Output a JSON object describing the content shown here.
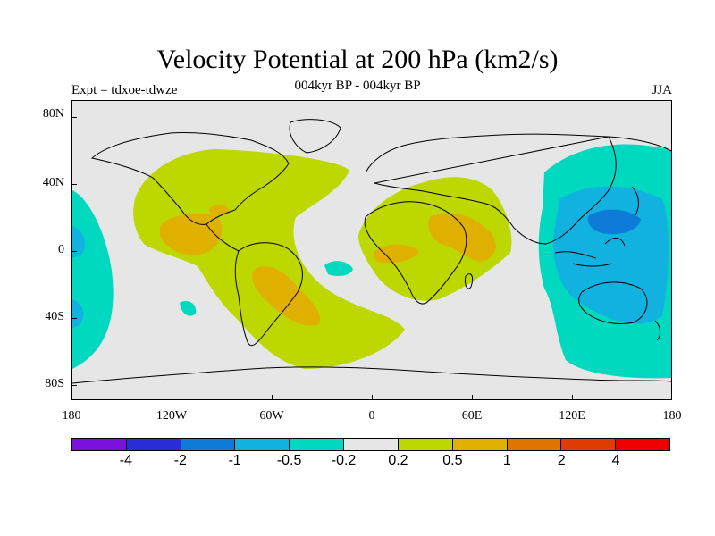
{
  "header": {
    "title": "Velocity Potential at 200 hPa (km2/s)",
    "subtitle": "004kyr BP - 004kyr BP",
    "left": "Expt = tdxoe-tdwze",
    "right": "JJA"
  },
  "axes": {
    "y_ticks": [
      "80N",
      "40N",
      "0",
      "40S",
      "80S"
    ],
    "x_ticks": [
      "180",
      "120W",
      "60W",
      "0",
      "60E",
      "120E",
      "180"
    ]
  },
  "colorbar": {
    "colors": [
      "#7a10dd",
      "#2a2ed8",
      "#0f7bd9",
      "#11b2e0",
      "#00d8c0",
      "#e6e6e6",
      "#bcd800",
      "#e0b000",
      "#e07400",
      "#e03c00",
      "#ee0000"
    ],
    "labels": [
      "-4",
      "-2",
      "-1",
      "-0.5",
      "-0.2",
      "0.2",
      "0.5",
      "1",
      "2",
      "4"
    ]
  },
  "map_colors": {
    "neutral": "#e6e6e6",
    "pos_low": "#bcd800",
    "pos_mid": "#e0b000",
    "neg_low": "#00d8c0",
    "neg_mid": "#11b2e0",
    "neg_high": "#0f7bd9"
  }
}
